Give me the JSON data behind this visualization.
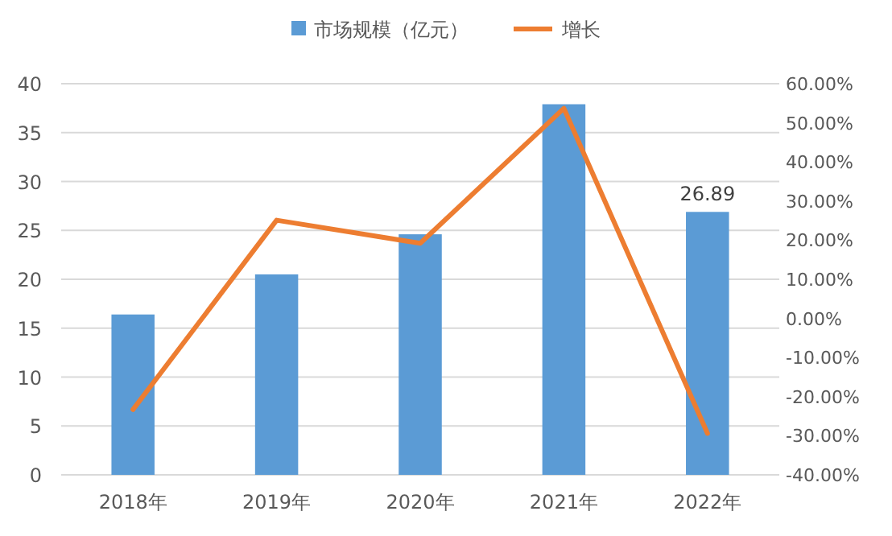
{
  "chart_data": {
    "type": "bar",
    "categories": [
      "2018年",
      "2019年",
      "2020年",
      "2021年",
      "2022年"
    ],
    "series": [
      {
        "name": "市场规模（亿元）",
        "color": "#5b9bd5",
        "values": [
          16.4,
          20.5,
          24.6,
          37.9,
          26.89
        ],
        "value_labels": [
          null,
          null,
          null,
          null,
          "26.89"
        ]
      },
      {
        "name": "增长",
        "type": "line",
        "axis": "y2",
        "color": "#ed7d31",
        "values": [
          -23.3,
          25.1,
          19.2,
          53.7,
          -29.4
        ]
      }
    ],
    "ylim": [
      0,
      40
    ],
    "yticks": [
      0,
      5,
      10,
      15,
      20,
      25,
      30,
      35,
      40
    ],
    "y2lim": [
      -40,
      60
    ],
    "y2ticks": [
      {
        "value": -40,
        "label": "-40.00%"
      },
      {
        "value": -30,
        "label": "-30.00%"
      },
      {
        "value": -20,
        "label": "-20.00%"
      },
      {
        "value": -10,
        "label": "-10.00%"
      },
      {
        "value": 0,
        "label": "0.00%"
      },
      {
        "value": 10,
        "label": "10.00%"
      },
      {
        "value": 20,
        "label": "20.00%"
      },
      {
        "value": 30,
        "label": "30.00%"
      },
      {
        "value": 40,
        "label": "40.00%"
      },
      {
        "value": 50,
        "label": "50.00%"
      },
      {
        "value": 60,
        "label": "60.00%"
      }
    ],
    "grid": "y",
    "legend": "top",
    "marker": "none",
    "line_style": "solid"
  }
}
